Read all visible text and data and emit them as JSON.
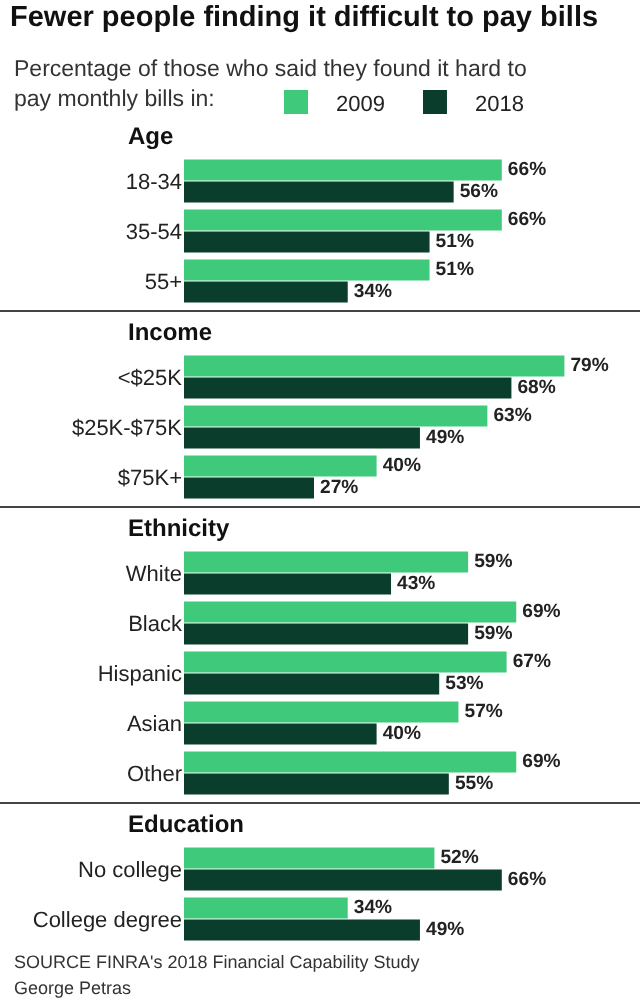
{
  "chart_data": [
    {
      "type": "bar",
      "orientation": "horizontal",
      "title": "Fewer people finding it difficult to pay bills",
      "subtitle": "Percentage of those who said they found it hard to pay monthly bills in:",
      "ylabel": "Age",
      "categories": [
        "18-34",
        "35-54",
        "55+"
      ],
      "tick_labels": "y",
      "legend": "top",
      "series": [
        {
          "name": "2009",
          "color": "#3ec97b",
          "values": [
            66,
            66,
            51
          ],
          "value_labels": [
            "66%",
            "66%",
            "51%"
          ]
        },
        {
          "name": "2018",
          "color": "#0b3d2c",
          "values": [
            56,
            51,
            34
          ],
          "value_labels": [
            "56%",
            "51%",
            "34%"
          ]
        }
      ]
    },
    {
      "type": "bar",
      "orientation": "horizontal",
      "ylabel": "Income",
      "categories": [
        "<$25K",
        "$25K-$75K",
        "$75K+"
      ],
      "tick_labels": "y",
      "series": [
        {
          "color": "#3ec97b",
          "values": [
            79,
            63,
            40
          ],
          "value_labels": [
            "79%",
            "63%",
            "40%"
          ]
        },
        {
          "color": "#0b3d2c",
          "values": [
            68,
            49,
            27
          ],
          "value_labels": [
            "68%",
            "49%",
            "27%"
          ]
        }
      ]
    },
    {
      "type": "bar",
      "orientation": "horizontal",
      "ylabel": "Ethnicity",
      "categories": [
        "White",
        "Black",
        "Hispanic",
        "Asian",
        "Other"
      ],
      "tick_labels": "y",
      "series": [
        {
          "color": "#3ec97b",
          "values": [
            59,
            69,
            67,
            57,
            69
          ],
          "value_labels": [
            "59%",
            "69%",
            "67%",
            "57%",
            "69%"
          ]
        },
        {
          "color": "#0b3d2c",
          "values": [
            43,
            59,
            53,
            40,
            55
          ],
          "value_labels": [
            "43%",
            "59%",
            "53%",
            "40%",
            "55%"
          ]
        }
      ]
    },
    {
      "type": "bar",
      "orientation": "horizontal",
      "ylabel": "Education",
      "categories": [
        "No college",
        "College degree"
      ],
      "tick_labels": "y",
      "annotations": [
        "SOURCE FINRA's 2018 Financial Capability Study",
        "George Petras"
      ],
      "series": [
        {
          "color": "#3ec97b",
          "values": [
            52,
            34
          ],
          "value_labels": [
            "52%",
            "34%"
          ]
        },
        {
          "color": "#0b3d2c",
          "values": [
            66,
            49
          ],
          "value_labels": [
            "66%",
            "49%"
          ]
        }
      ]
    }
  ]
}
